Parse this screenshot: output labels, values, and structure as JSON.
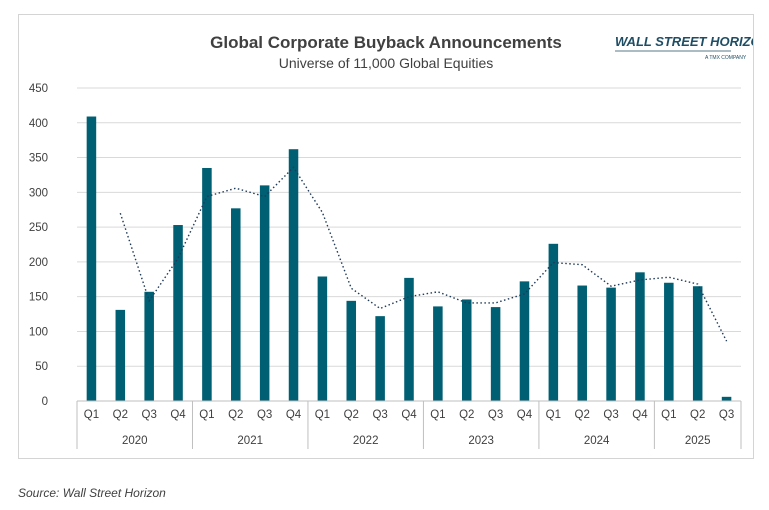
{
  "chart_data": {
    "type": "bar",
    "title": "Global Corporate Buyback Announcements",
    "subtitle": "Universe of 11,000 Global Equities",
    "categories": [
      "Q1",
      "Q2",
      "Q3",
      "Q4",
      "Q1",
      "Q2",
      "Q3",
      "Q4",
      "Q1",
      "Q2",
      "Q3",
      "Q4",
      "Q1",
      "Q2",
      "Q3",
      "Q4",
      "Q1",
      "Q2",
      "Q3",
      "Q4",
      "Q1",
      "Q2",
      "Q3"
    ],
    "years": [
      {
        "label": "2020",
        "count": 4
      },
      {
        "label": "2021",
        "count": 4
      },
      {
        "label": "2022",
        "count": 4
      },
      {
        "label": "2023",
        "count": 4
      },
      {
        "label": "2024",
        "count": 4
      },
      {
        "label": "2025",
        "count": 3
      }
    ],
    "values": [
      409,
      131,
      157,
      253,
      335,
      277,
      310,
      362,
      179,
      144,
      122,
      177,
      136,
      146,
      135,
      172,
      226,
      166,
      163,
      185,
      170,
      165,
      6
    ],
    "trendline": {
      "style": "dotted",
      "values": [
        null,
        270,
        144,
        205,
        294,
        306,
        294,
        336,
        271,
        162,
        133,
        150,
        157,
        141,
        141,
        154,
        199,
        196,
        165,
        174,
        178,
        168,
        86
      ]
    },
    "ylim": [
      0,
      450
    ],
    "yticks": [
      0,
      50,
      100,
      150,
      200,
      250,
      300,
      350,
      400,
      450
    ],
    "grid": true,
    "bar_color": "#005f73",
    "trend_color": "#1f3a5a"
  },
  "logo": {
    "name": "WALL STREET HORIZON",
    "tagline": "A TMX COMPANY"
  },
  "source": "Source: Wall Street Horizon"
}
